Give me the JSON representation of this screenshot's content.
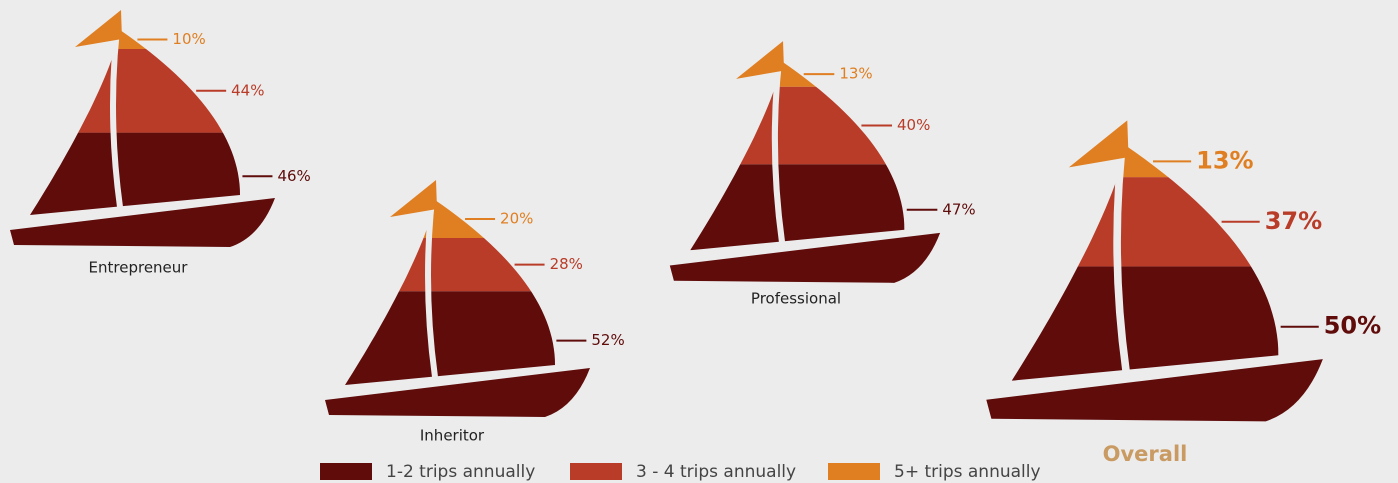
{
  "chart_data": {
    "type": "sailboat",
    "categories": [
      "Entrepreneur",
      "Inheritor",
      "Professional",
      "Overall"
    ],
    "series": [
      {
        "name": "1-2 trips annually",
        "color": "#5f0c0b",
        "values": [
          46,
          52,
          47,
          50
        ],
        "value_labels": [
          "46%",
          "52%",
          "47%",
          "50%"
        ]
      },
      {
        "name": "3 - 4 trips annually",
        "color": "#b93c28",
        "values": [
          44,
          28,
          40,
          37
        ],
        "value_labels": [
          "44%",
          "28%",
          "40%",
          "37%"
        ]
      },
      {
        "name": "5+ trips annually",
        "color": "#e07f22",
        "values": [
          10,
          20,
          13,
          13
        ],
        "value_labels": [
          "10%",
          "20%",
          "13%",
          "13%"
        ]
      }
    ]
  }
}
